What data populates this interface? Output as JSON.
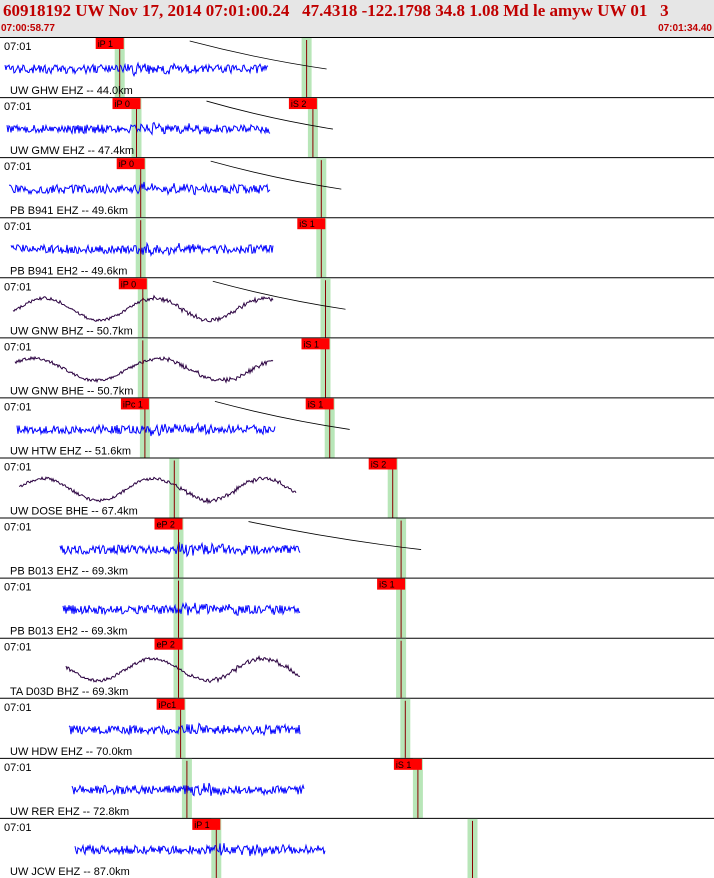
{
  "header": {
    "title": "60918192 UW Nov 17, 2014 07:01:00.24   47.4318 -122.1798 34.8 1.08 Md le amyw UW 01   3",
    "start_time": "07:00:58.77",
    "end_time": "07:01:34.40"
  },
  "colors": {
    "header_bg": "#e6e6e6",
    "header_text": "#c00000",
    "trace_short_period": "#0000ff",
    "trace_broadband": "#2a0040",
    "pick_box": "#ff0000",
    "pick_window": "#b8e6b8",
    "theoretical_curve": "#000000"
  },
  "traces": [
    {
      "time_label": "07:01",
      "label": "UW GHW EHZ -- 44.0km",
      "type": "sp",
      "p_pick": "iP 1",
      "p_t": 0.41,
      "s_pick": "",
      "s_t": 0.855,
      "end": 0.765,
      "curve": true
    },
    {
      "time_label": "07:01",
      "label": "UW GMW EHZ -- 47.4km",
      "type": "sp",
      "p_pick": "iP 0",
      "p_t": 0.45,
      "s_pick": "iS 2",
      "s_t": 0.87,
      "end": 0.77,
      "curve": true
    },
    {
      "time_label": "07:01",
      "label": "PB B941 EHZ -- 49.6km",
      "type": "sp",
      "p_pick": "iP 0",
      "p_t": 0.46,
      "s_pick": "",
      "s_t": 0.89,
      "end": 0.77,
      "curve": true
    },
    {
      "time_label": "07:01",
      "label": "PB B941 EH2 -- 49.6km",
      "type": "sp",
      "p_pick": "",
      "p_t": 0.46,
      "s_pick": "iS 1",
      "s_t": 0.89,
      "end": 0.775,
      "curve": false
    },
    {
      "time_label": "07:01",
      "label": "UW GNW BHZ -- 50.7km",
      "type": "bb",
      "p_pick": "iP 0",
      "p_t": 0.465,
      "s_pick": "",
      "s_t": 0.9,
      "end": 0.775,
      "curve": true
    },
    {
      "time_label": "07:01",
      "label": "UW GNW BHE -- 50.7km",
      "type": "bb",
      "p_pick": "",
      "p_t": 0.465,
      "s_pick": "iS 1",
      "s_t": 0.9,
      "end": 0.775,
      "curve": false
    },
    {
      "time_label": "07:01",
      "label": "UW HTW EHZ -- 51.6km",
      "type": "sp",
      "p_pick": "iPc 1",
      "p_t": 0.47,
      "s_pick": "iS 1",
      "s_t": 0.91,
      "end": 0.78,
      "curve": true
    },
    {
      "time_label": "07:01",
      "label": "UW DOSE BHE -- 67.4km",
      "type": "bb",
      "p_pick": "",
      "p_t": 0.54,
      "s_pick": "iS 2",
      "s_t": 1.06,
      "end": 0.83,
      "curve": false
    },
    {
      "time_label": "07:01",
      "label": "PB B013 EHZ -- 69.3km",
      "type": "sp",
      "p_pick": "eP 2",
      "p_t": 0.55,
      "s_pick": "",
      "s_t": 1.08,
      "end": 0.84,
      "curve": true
    },
    {
      "time_label": "07:01",
      "label": "PB B013 EH2 -- 69.3km",
      "type": "sp",
      "p_pick": "",
      "p_t": 0.55,
      "s_pick": "iS 1",
      "s_t": 1.08,
      "end": 0.84,
      "curve": false
    },
    {
      "time_label": "07:01",
      "label": "TA D03D BHZ -- 69.3km",
      "type": "bb",
      "p_pick": "eP 2",
      "p_t": 0.55,
      "s_pick": "",
      "s_t": 1.08,
      "end": 0.84,
      "curve": false
    },
    {
      "time_label": "07:01",
      "label": "UW HDW EHZ -- 70.0km",
      "type": "sp",
      "p_pick": "iPc1",
      "p_t": 0.555,
      "s_pick": "",
      "s_t": 1.09,
      "end": 0.84,
      "curve": false
    },
    {
      "time_label": "07:01",
      "label": "UW RER EHZ -- 72.8km",
      "type": "sp",
      "p_pick": "",
      "p_t": 0.57,
      "s_pick": "iS 1",
      "s_t": 1.12,
      "end": 0.85,
      "curve": false
    },
    {
      "time_label": "07:01",
      "label": "UW JCW EHZ -- 87.0km",
      "type": "sp",
      "p_pick": "iP 1",
      "p_t": 0.64,
      "s_pick": "",
      "s_t": 1.25,
      "end": 0.9,
      "curve": false
    }
  ]
}
